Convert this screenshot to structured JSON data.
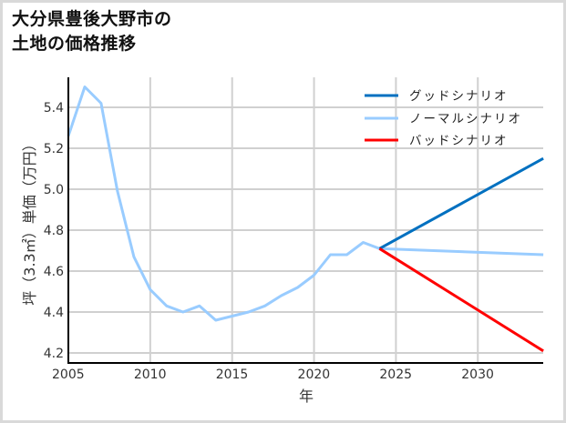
{
  "title": {
    "line1": "大分県豊後大野市の",
    "line2": "土地の価格推移"
  },
  "chart_data": {
    "type": "line",
    "title": "大分県豊後大野市の土地の価格推移",
    "xlabel": "年",
    "ylabel": "坪（3.3㎡）単価（万円）",
    "xlim": [
      2005,
      2034
    ],
    "ylim": [
      4.15,
      5.55
    ],
    "x_ticks": [
      2005,
      2010,
      2015,
      2020,
      2025,
      2030
    ],
    "y_ticks": [
      4.2,
      4.4,
      4.6,
      4.8,
      5.0,
      5.2,
      5.4
    ],
    "grid": true,
    "legend_position": "upper right",
    "series": [
      {
        "name": "ノーマルシナリオ",
        "color": "#99ccff",
        "x": [
          2005,
          2006,
          2007,
          2008,
          2009,
          2010,
          2011,
          2012,
          2013,
          2014,
          2015,
          2016,
          2017,
          2018,
          2019,
          2020,
          2021,
          2022,
          2023,
          2024,
          2034
        ],
        "values": [
          5.26,
          5.5,
          5.42,
          4.99,
          4.67,
          4.51,
          4.43,
          4.4,
          4.43,
          4.36,
          4.38,
          4.4,
          4.43,
          4.48,
          4.52,
          4.58,
          4.68,
          4.68,
          4.74,
          4.71,
          4.68
        ]
      },
      {
        "name": "グッドシナリオ",
        "color": "#0070c0",
        "x": [
          2024,
          2034
        ],
        "values": [
          4.71,
          5.15
        ]
      },
      {
        "name": "バッドシナリオ",
        "color": "#ff0000",
        "x": [
          2024,
          2034
        ],
        "values": [
          4.71,
          4.21
        ]
      }
    ]
  },
  "legend": {
    "good": "グッドシナリオ",
    "normal": "ノーマルシナリオ",
    "bad": "バッドシナリオ"
  },
  "axes": {
    "xlabel": "年",
    "ylabel": "坪（3.3㎡）単価（万円）"
  }
}
